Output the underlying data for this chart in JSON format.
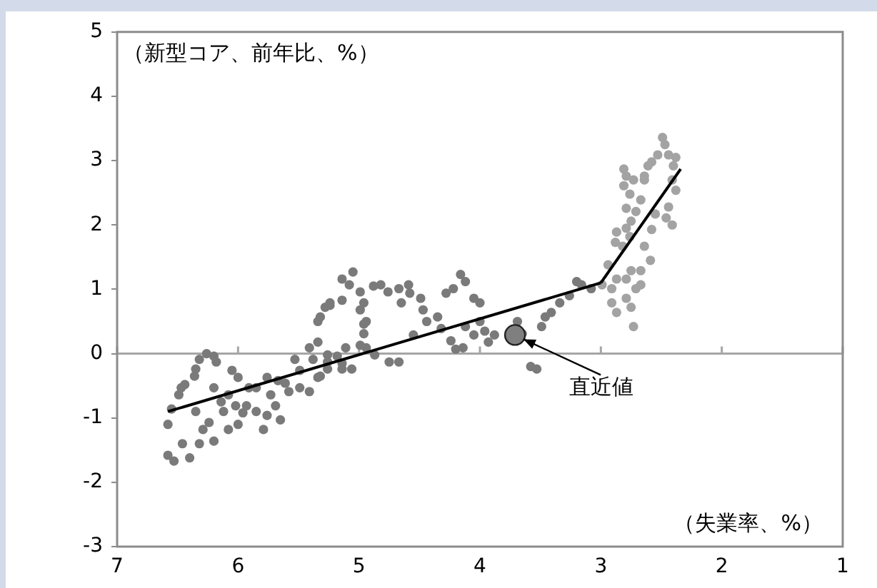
{
  "chart_data": {
    "type": "scatter",
    "xlabel": "（失業率、%）",
    "ylabel": "（新型コア、前年比、%）",
    "xlim": [
      7,
      1
    ],
    "xticks": [
      7,
      6,
      5,
      4,
      3,
      2,
      1
    ],
    "ylim": [
      -3,
      5
    ],
    "yticks": [
      -3,
      -2,
      -1,
      0,
      1,
      2,
      3,
      4,
      5
    ],
    "grid": false,
    "legend": false,
    "marker": "circle",
    "ref_lines": [
      {
        "axis": "y",
        "value": 0,
        "color": "#a6a6a6"
      }
    ],
    "annotations": [
      {
        "text": "直近値",
        "x": 3.71,
        "y": 0.29
      }
    ],
    "series": [
      {
        "color": "#7a7a7a",
        "x": [
          6.58,
          6.53,
          6.46,
          6.58,
          6.55,
          6.49,
          6.44,
          6.36,
          6.32,
          6.26,
          6.2,
          6.29,
          6.24,
          6.2,
          6.32,
          6.14,
          6.08,
          6.02,
          5.96,
          6.08,
          6.0,
          6.4,
          6.47,
          6.35,
          6.18,
          6.05,
          6.0,
          6.35,
          6.12,
          5.93,
          5.85,
          5.76,
          5.65,
          5.69,
          5.76,
          5.61,
          5.58,
          5.49,
          5.41,
          5.34,
          5.26,
          5.14,
          5.06,
          5.53,
          5.41,
          5.34,
          5.26,
          5.34,
          5.28,
          5.24,
          5.14,
          5.14,
          5.08,
          5.05,
          4.99,
          4.96,
          4.94,
          4.96,
          4.99,
          4.88,
          4.82,
          4.76,
          4.67,
          4.59,
          4.58,
          4.65,
          4.49,
          4.47,
          4.44,
          4.35,
          4.32,
          4.28,
          4.22,
          4.16,
          4.12,
          4.05,
          4.0,
          4.12,
          4.05,
          4.24,
          4.2,
          4.14,
          4.0,
          3.96,
          3.88,
          3.93,
          3.58,
          3.53,
          3.69,
          3.65,
          3.49,
          3.46,
          3.41,
          3.34,
          3.26,
          3.2,
          3.16,
          3.08,
          4.99,
          4.96,
          4.94,
          5.11,
          5.18,
          5.14,
          5.32,
          5.38,
          5.26,
          4.75,
          4.67,
          4.87,
          4.55,
          5.32,
          5.24,
          5.85,
          5.73,
          5.91,
          5.79,
          5.67,
          5.49,
          6.2
        ],
        "values": [
          -1.58,
          -1.67,
          -1.4,
          -1.1,
          -0.86,
          -0.64,
          -0.48,
          -0.35,
          -0.09,
          0.0,
          -0.04,
          -1.18,
          -1.07,
          -1.36,
          -1.4,
          -0.75,
          -0.64,
          -0.81,
          -0.92,
          -1.18,
          -1.1,
          -1.62,
          -0.53,
          -0.24,
          -0.13,
          -0.26,
          -0.37,
          -0.9,
          -0.9,
          -0.81,
          -0.9,
          -0.96,
          -1.03,
          -0.81,
          -0.37,
          -0.46,
          -0.59,
          -0.53,
          -0.59,
          -0.37,
          -0.24,
          -0.15,
          -0.24,
          -0.09,
          0.09,
          0.18,
          -0.02,
          0.5,
          0.72,
          0.79,
          0.83,
          1.16,
          1.07,
          1.27,
          0.96,
          0.79,
          0.5,
          0.31,
          0.13,
          1.05,
          1.07,
          0.96,
          1.01,
          1.07,
          0.94,
          0.79,
          0.86,
          0.68,
          0.5,
          0.57,
          0.39,
          0.94,
          1.01,
          1.23,
          1.12,
          0.86,
          0.79,
          0.42,
          0.29,
          0.2,
          0.07,
          0.09,
          0.5,
          0.35,
          0.29,
          0.18,
          -0.2,
          -0.24,
          0.5,
          0.31,
          0.42,
          0.57,
          0.64,
          0.79,
          0.9,
          1.12,
          1.07,
          1.01,
          0.68,
          0.46,
          0.09,
          0.09,
          -0.04,
          -0.24,
          -0.35,
          -0.09,
          -0.13,
          -0.13,
          -0.13,
          -0.02,
          0.29,
          0.57,
          0.75,
          -0.53,
          -0.64,
          -0.53,
          -1.18,
          -0.42,
          -0.26,
          -0.53
        ]
      },
      {
        "color": "#a3a3a3",
        "x": [
          2.49,
          2.47,
          2.53,
          2.44,
          2.38,
          2.58,
          2.61,
          2.4,
          2.64,
          2.41,
          2.38,
          2.81,
          2.79,
          2.81,
          2.73,
          2.64,
          2.76,
          2.67,
          2.79,
          2.71,
          2.44,
          2.46,
          2.41,
          2.55,
          2.58,
          2.75,
          2.79,
          2.87,
          2.88,
          2.82,
          2.76,
          2.64,
          2.59,
          2.67,
          2.75,
          2.79,
          2.87,
          2.91,
          2.91,
          2.87,
          2.79,
          2.75,
          2.73,
          2.71,
          2.67,
          2.94,
          2.99
        ],
        "values": [
          3.36,
          3.25,
          3.09,
          3.09,
          3.05,
          2.98,
          2.92,
          2.92,
          2.76,
          2.7,
          2.54,
          2.87,
          2.76,
          2.61,
          2.7,
          2.7,
          2.48,
          2.39,
          2.26,
          2.21,
          2.28,
          2.11,
          2.0,
          2.17,
          1.93,
          2.06,
          1.95,
          1.89,
          1.73,
          1.67,
          1.82,
          1.67,
          1.45,
          1.29,
          1.29,
          1.16,
          1.16,
          1.01,
          0.79,
          0.64,
          0.86,
          0.72,
          0.42,
          1.01,
          1.07,
          1.38,
          1.07
        ]
      },
      {
        "type": "bubble",
        "color": "#7f7f7f",
        "x": [
          3.71
        ],
        "values": [
          0.29
        ],
        "sizes": [
          1
        ]
      },
      {
        "type": "line",
        "marker": "none",
        "color": "#000000",
        "x": [
          6.58,
          3.0
        ],
        "values": [
          -0.9,
          1.1
        ]
      },
      {
        "type": "line",
        "marker": "none",
        "color": "#000000",
        "x": [
          3.0,
          2.34
        ],
        "values": [
          1.1,
          2.87
        ]
      }
    ]
  }
}
